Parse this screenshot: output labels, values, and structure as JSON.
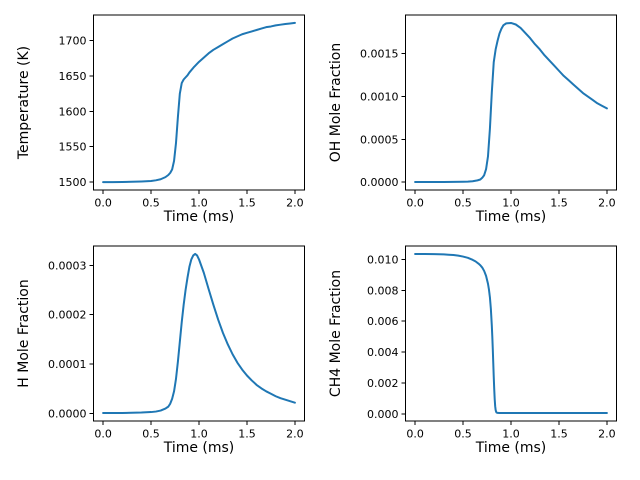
{
  "figure": {
    "background": "#ffffff",
    "line_color": "#1f77b4"
  },
  "chart_data": [
    {
      "id": "temperature",
      "type": "line",
      "title": "",
      "xlabel": "Time (ms)",
      "ylabel": "Temperature (K)",
      "legend": null,
      "grid": false,
      "xlim": [
        -0.1,
        2.1
      ],
      "ylim": [
        1488.8,
        1736.2
      ],
      "xticks": [
        0.0,
        0.5,
        1.0,
        1.5,
        2.0
      ],
      "xtick_labels": [
        "0.0",
        "0.5",
        "1.0",
        "1.5",
        "2.0"
      ],
      "yticks": [
        1500,
        1550,
        1600,
        1650,
        1700
      ],
      "ytick_labels": [
        "1500",
        "1550",
        "1600",
        "1650",
        "1700"
      ],
      "color": "#1f77b4",
      "x": [
        0,
        0.1,
        0.2,
        0.3,
        0.4,
        0.5,
        0.55,
        0.6,
        0.65,
        0.68,
        0.7,
        0.72,
        0.74,
        0.76,
        0.78,
        0.8,
        0.82,
        0.84,
        0.86,
        0.88,
        0.9,
        0.95,
        1.0,
        1.05,
        1.1,
        1.15,
        1.2,
        1.25,
        1.3,
        1.35,
        1.4,
        1.45,
        1.5,
        1.55,
        1.6,
        1.65,
        1.7,
        1.75,
        1.8,
        1.85,
        1.9,
        1.95,
        2.0
      ],
      "series": [
        {
          "name": "Temperature (K)",
          "values": [
            1500,
            1500,
            1500.2,
            1500.4,
            1500.8,
            1501.5,
            1502.5,
            1504,
            1507,
            1510,
            1513,
            1518,
            1530,
            1555,
            1592,
            1625,
            1640,
            1645,
            1648,
            1651,
            1655,
            1663,
            1670,
            1676,
            1682,
            1687,
            1691,
            1695,
            1699,
            1703,
            1706,
            1709,
            1711,
            1713,
            1715,
            1717,
            1719,
            1720,
            1721.5,
            1722.5,
            1723.5,
            1724.2,
            1725
          ]
        }
      ]
    },
    {
      "id": "oh",
      "type": "line",
      "title": "",
      "xlabel": "Time (ms)",
      "ylabel": "OH Mole Fraction",
      "legend": null,
      "grid": false,
      "xlim": [
        -0.1,
        2.1
      ],
      "ylim": [
        -9.24e-05,
        0.0019509
      ],
      "xticks": [
        0.0,
        0.5,
        1.0,
        1.5,
        2.0
      ],
      "xtick_labels": [
        "0.0",
        "0.5",
        "1.0",
        "1.5",
        "2.0"
      ],
      "yticks": [
        0.0,
        0.0005,
        0.001,
        0.0015
      ],
      "ytick_labels": [
        "0.0000",
        "0.0005",
        "0.0010",
        "0.0015"
      ],
      "color": "#1f77b4",
      "x": [
        0,
        0.1,
        0.2,
        0.3,
        0.4,
        0.5,
        0.55,
        0.6,
        0.65,
        0.68,
        0.7,
        0.72,
        0.74,
        0.76,
        0.78,
        0.8,
        0.82,
        0.84,
        0.86,
        0.88,
        0.9,
        0.92,
        0.95,
        1.0,
        1.05,
        1.1,
        1.15,
        1.2,
        1.25,
        1.3,
        1.35,
        1.4,
        1.45,
        1.5,
        1.55,
        1.6,
        1.65,
        1.7,
        1.75,
        1.8,
        1.85,
        1.9,
        1.95,
        2.0
      ],
      "series": [
        {
          "name": "OH Mole Fraction",
          "values": [
            5e-07,
            5e-07,
            1e-06,
            1e-06,
            2e-06,
            4e-06,
            6e-06,
            1e-05,
            2e-05,
            3e-05,
            5e-05,
            8e-05,
            0.00015,
            0.0003,
            0.00062,
            0.00105,
            0.0014,
            0.00155,
            0.00165,
            0.001735,
            0.00179,
            0.00183,
            0.001853,
            0.001858,
            0.00184,
            0.0018,
            0.00174,
            0.00168,
            0.00161,
            0.00155,
            0.00148,
            0.00142,
            0.00136,
            0.0013,
            0.00124,
            0.00119,
            0.00114,
            0.00109,
            0.00104,
            0.001,
            0.00096,
            0.00092,
            0.00089,
            0.00086
          ]
        }
      ]
    },
    {
      "id": "h",
      "type": "line",
      "title": "",
      "xlabel": "Time (ms)",
      "ylabel": "H Mole Fraction",
      "legend": null,
      "grid": false,
      "xlim": [
        -0.1,
        2.1
      ],
      "ylim": [
        -1.51e-05,
        0.0003391
      ],
      "xticks": [
        0.0,
        0.5,
        1.0,
        1.5,
        2.0
      ],
      "xtick_labels": [
        "0.0",
        "0.5",
        "1.0",
        "1.5",
        "2.0"
      ],
      "yticks": [
        0.0,
        0.0001,
        0.0002,
        0.0003
      ],
      "ytick_labels": [
        "0.0000",
        "0.0001",
        "0.0002",
        "0.0003"
      ],
      "color": "#1f77b4",
      "x": [
        0,
        0.2,
        0.4,
        0.5,
        0.55,
        0.6,
        0.65,
        0.68,
        0.7,
        0.72,
        0.74,
        0.76,
        0.78,
        0.8,
        0.82,
        0.84,
        0.86,
        0.88,
        0.9,
        0.92,
        0.94,
        0.96,
        0.98,
        1.0,
        1.05,
        1.1,
        1.15,
        1.2,
        1.25,
        1.3,
        1.35,
        1.4,
        1.45,
        1.5,
        1.55,
        1.6,
        1.65,
        1.7,
        1.75,
        1.8,
        1.85,
        1.9,
        1.95,
        2.0
      ],
      "series": [
        {
          "name": "H Mole Fraction",
          "values": [
            1e-06,
            1e-06,
            2e-06,
            3e-06,
            4e-06,
            6e-06,
            1e-05,
            1.4e-05,
            2e-05,
            3e-05,
            4.5e-05,
            7e-05,
            0.000105,
            0.000145,
            0.000185,
            0.00022,
            0.00025,
            0.000275,
            0.000297,
            0.000312,
            0.00032,
            0.000323,
            0.00032,
            0.000312,
            0.000285,
            0.000252,
            0.00022,
            0.00019,
            0.000163,
            0.00014,
            0.00012,
            0.000103,
            8.9e-05,
            7.7e-05,
            6.7e-05,
            5.8e-05,
            5.1e-05,
            4.5e-05,
            4e-05,
            3.5e-05,
            3.1e-05,
            2.8e-05,
            2.5e-05,
            2.2e-05
          ]
        }
      ]
    },
    {
      "id": "ch4",
      "type": "line",
      "title": "",
      "xlabel": "Time (ms)",
      "ylabel": "CH4 Mole Fraction",
      "legend": null,
      "grid": false,
      "xlim": [
        -0.1,
        2.1
      ],
      "ylim": [
        -0.000465,
        0.010865
      ],
      "xticks": [
        0.0,
        0.5,
        1.0,
        1.5,
        2.0
      ],
      "xtick_labels": [
        "0.0",
        "0.5",
        "1.0",
        "1.5",
        "2.0"
      ],
      "yticks": [
        0.0,
        0.002,
        0.004,
        0.006,
        0.008,
        0.01
      ],
      "ytick_labels": [
        "0.000",
        "0.002",
        "0.004",
        "0.006",
        "0.008",
        "0.010"
      ],
      "color": "#1f77b4",
      "x": [
        0,
        0.1,
        0.2,
        0.3,
        0.35,
        0.4,
        0.45,
        0.5,
        0.55,
        0.6,
        0.63,
        0.66,
        0.68,
        0.7,
        0.72,
        0.74,
        0.76,
        0.77,
        0.78,
        0.79,
        0.8,
        0.805,
        0.81,
        0.815,
        0.82,
        0.825,
        0.83,
        0.835,
        0.84,
        0.845,
        0.85,
        0.86,
        0.88,
        0.9,
        1.0,
        1.1,
        1.2,
        1.4,
        1.6,
        1.8,
        2.0
      ],
      "series": [
        {
          "name": "CH4 Mole Fraction",
          "values": [
            0.01035,
            0.01035,
            0.01034,
            0.01032,
            0.0103,
            0.01028,
            0.01024,
            0.01018,
            0.0101,
            0.00997,
            0.00987,
            0.00973,
            0.00962,
            0.00947,
            0.00925,
            0.00893,
            0.00842,
            0.00805,
            0.00755,
            0.0068,
            0.0057,
            0.005,
            0.0042,
            0.0033,
            0.0024,
            0.0016,
            0.00095,
            0.0005,
            0.00025,
            0.00013,
            8e-05,
            6e-05,
            5e-05,
            5e-05,
            5e-05,
            5e-05,
            5e-05,
            5e-05,
            5e-05,
            5e-05,
            5e-05
          ]
        }
      ]
    }
  ]
}
